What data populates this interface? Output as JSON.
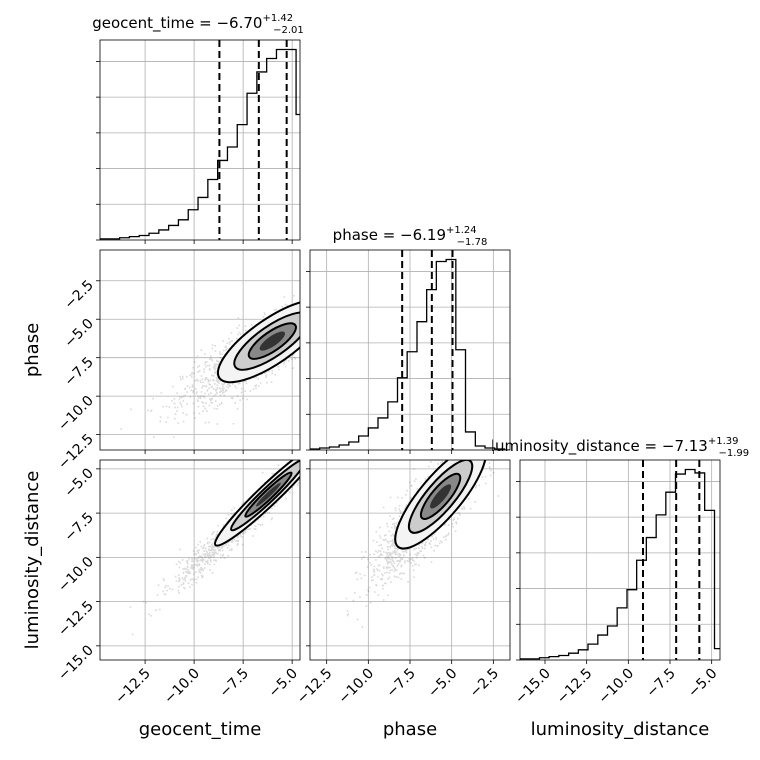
{
  "chart_data": {
    "type": "scatter",
    "grid": true,
    "parameters": [
      "geocent_time",
      "phase",
      "luminosity_distance"
    ],
    "panels": [
      {
        "id": "hist-geocent_time",
        "kind": "histogram",
        "parameter": "geocent_time",
        "title_main": "geocent_time = −6.70",
        "title_sup": "+1.42",
        "title_sub": "−2.01",
        "xlim": [
          -14.8,
          -4.6
        ],
        "quantiles": [
          -8.71,
          -6.7,
          -5.28
        ],
        "bin_edges": [
          -14.8,
          -14.3,
          -13.8,
          -13.3,
          -12.8,
          -12.3,
          -11.8,
          -11.3,
          -10.8,
          -10.3,
          -9.8,
          -9.3,
          -8.8,
          -8.3,
          -7.8,
          -7.3,
          -6.8,
          -6.3,
          -5.8,
          -5.3,
          -4.8,
          -4.6
        ],
        "counts": [
          1,
          1,
          2,
          3,
          4,
          6,
          9,
          13,
          18,
          27,
          38,
          54,
          71,
          83,
          103,
          131,
          150,
          162,
          170,
          170,
          112
        ]
      },
      {
        "id": "scatter-geocent_time-phase",
        "kind": "scatter_2d",
        "x_parameter": "geocent_time",
        "y_parameter": "phase",
        "xlim": [
          -14.8,
          -4.6
        ],
        "ylim": [
          -13.5,
          -0.5
        ],
        "correlation": 0.82,
        "center": [
          -7.0,
          -7.3
        ],
        "spread": [
          1.8,
          1.6
        ]
      },
      {
        "id": "hist-phase",
        "kind": "histogram",
        "parameter": "phase",
        "title_main": "phase = −6.19",
        "title_sup": "+1.24",
        "title_sub": "−1.78",
        "xlim": [
          -13.5,
          -1.5
        ],
        "quantiles": [
          -7.97,
          -6.19,
          -4.95
        ],
        "bin_edges": [
          -13.5,
          -12.92,
          -12.33,
          -11.75,
          -11.17,
          -10.58,
          -10.0,
          -9.42,
          -8.83,
          -8.25,
          -7.67,
          -7.08,
          -6.5,
          -5.92,
          -5.33,
          -4.75,
          -4.17,
          -3.58,
          -3.0,
          -2.42,
          -1.83,
          -1.5
        ],
        "counts": [
          1,
          2,
          3,
          5,
          8,
          14,
          22,
          32,
          48,
          72,
          98,
          128,
          160,
          188,
          190,
          100,
          18,
          4,
          2,
          1,
          0
        ]
      },
      {
        "id": "scatter-geocent_time-luminosity_distance",
        "kind": "scatter_2d",
        "x_parameter": "geocent_time",
        "y_parameter": "luminosity_distance",
        "xlim": [
          -14.8,
          -4.6
        ],
        "ylim": [
          -15.8,
          -4.5
        ],
        "correlation": 0.97,
        "center": [
          -7.2,
          -7.5
        ],
        "spread": [
          1.8,
          1.9
        ]
      },
      {
        "id": "scatter-phase-luminosity_distance",
        "kind": "scatter_2d",
        "x_parameter": "phase",
        "y_parameter": "luminosity_distance",
        "xlim": [
          -13.5,
          -1.5
        ],
        "ylim": [
          -15.8,
          -4.5
        ],
        "correlation": 0.85,
        "center": [
          -6.6,
          -7.6
        ],
        "spread": [
          1.7,
          1.9
        ]
      },
      {
        "id": "hist-luminosity_distance",
        "kind": "histogram",
        "parameter": "luminosity_distance",
        "title_main": "luminosity_distance = −7.13",
        "title_sup": "+1.39",
        "title_sub": "−1.99",
        "xlim": [
          -16.5,
          -4.5
        ],
        "quantiles": [
          -9.12,
          -7.13,
          -5.74
        ],
        "bin_edges": [
          -16.5,
          -15.92,
          -15.33,
          -14.75,
          -14.17,
          -13.58,
          -13.0,
          -12.42,
          -11.83,
          -11.25,
          -10.67,
          -10.08,
          -9.5,
          -8.92,
          -8.33,
          -7.75,
          -7.17,
          -6.58,
          -6.0,
          -5.42,
          -4.83,
          -4.5
        ],
        "counts": [
          1,
          1,
          2,
          3,
          4,
          6,
          9,
          14,
          22,
          30,
          46,
          62,
          88,
          108,
          128,
          148,
          164,
          168,
          165,
          132,
          10
        ]
      }
    ],
    "x_axes": [
      {
        "label": "geocent_time",
        "ticks": [
          "−12.5",
          "−10.0",
          "−7.5",
          "−5.0"
        ],
        "values": [
          -12.5,
          -10.0,
          -7.5,
          -5.0
        ]
      },
      {
        "label": "phase",
        "ticks": [
          "−12.5",
          "−10.0",
          "−7.5",
          "−5.0",
          "−2.5"
        ],
        "values": [
          -12.5,
          -10.0,
          -7.5,
          -5.0,
          -2.5
        ]
      },
      {
        "label": "luminosity_distance",
        "ticks": [
          "−15.0",
          "−12.5",
          "−10.0",
          "−7.5",
          "−5.0"
        ],
        "values": [
          -15.0,
          -12.5,
          -10.0,
          -7.5,
          -5.0
        ]
      }
    ],
    "y_axes": [
      {
        "label": "phase",
        "ticks": [
          "−2.5",
          "−5.0",
          "−7.5",
          "−10.0",
          "−12.5"
        ],
        "values": [
          -2.5,
          -5.0,
          -7.5,
          -10.0,
          -12.5
        ]
      },
      {
        "label": "luminosity_distance",
        "ticks": [
          "−5.0",
          "−7.5",
          "−10.0",
          "−12.5",
          "−15.0"
        ],
        "values": [
          -5.0,
          -7.5,
          -10.0,
          -12.5,
          -15.0
        ]
      }
    ]
  }
}
